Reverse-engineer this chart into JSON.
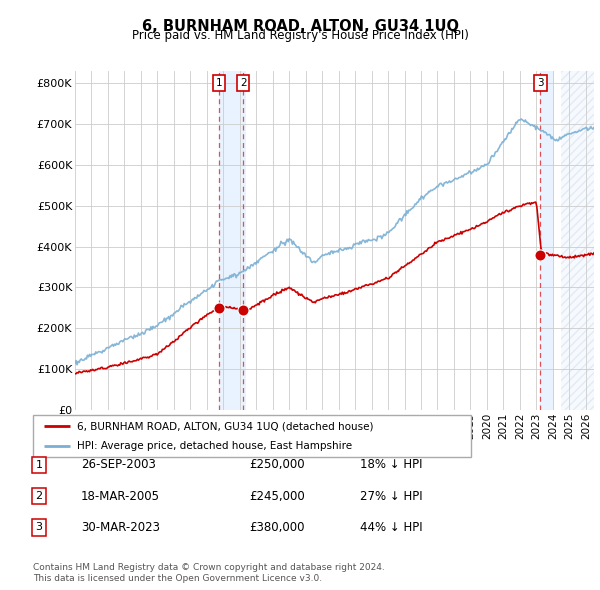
{
  "title": "6, BURNHAM ROAD, ALTON, GU34 1UQ",
  "subtitle": "Price paid vs. HM Land Registry's House Price Index (HPI)",
  "red_label": "6, BURNHAM ROAD, ALTON, GU34 1UQ (detached house)",
  "blue_label": "HPI: Average price, detached house, East Hampshire",
  "footer1": "Contains HM Land Registry data © Crown copyright and database right 2024.",
  "footer2": "This data is licensed under the Open Government Licence v3.0.",
  "transactions": [
    {
      "num": 1,
      "date": "26-SEP-2003",
      "price": 250000,
      "pct": "18%",
      "dir": "↓",
      "x_year": 2003.73
    },
    {
      "num": 2,
      "date": "18-MAR-2005",
      "price": 245000,
      "pct": "27%",
      "dir": "↓",
      "x_year": 2005.21
    },
    {
      "num": 3,
      "date": "30-MAR-2023",
      "price": 380000,
      "pct": "44%",
      "dir": "↓",
      "x_year": 2023.24
    }
  ],
  "ylim": [
    0,
    830000
  ],
  "xlim_start": 1995.0,
  "xlim_end": 2026.5,
  "red_color": "#cc0000",
  "blue_color": "#7aafd4",
  "grid_color": "#cccccc",
  "background_color": "#ffffff",
  "vline_color": "#dd3333",
  "shade_color": "#ddeeff",
  "hatch_region_start": 2024.5
}
